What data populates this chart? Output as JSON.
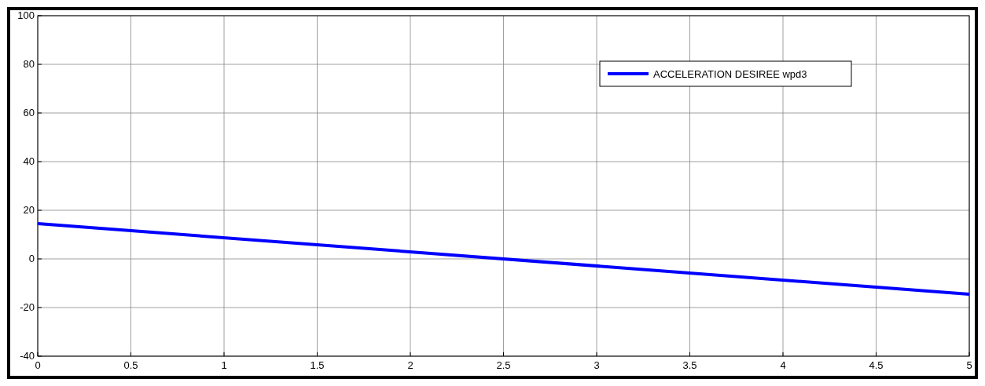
{
  "chart_data": {
    "type": "line",
    "x": [
      0,
      5
    ],
    "series": [
      {
        "name": "ACCELERATION DESIREE wpd3",
        "color": "#0000ff",
        "values": [
          14.5,
          -14.5
        ]
      }
    ],
    "xlim": [
      0,
      5
    ],
    "xticks": [
      0,
      0.5,
      1,
      1.5,
      2,
      2.5,
      3,
      3.5,
      4,
      4.5,
      5
    ],
    "ylim": [
      -40,
      100
    ],
    "yticks": [
      -40,
      -20,
      0,
      20,
      40,
      60,
      80,
      100
    ],
    "grid": true,
    "legend": "top right",
    "marker": "none",
    "line_style": "solid"
  }
}
